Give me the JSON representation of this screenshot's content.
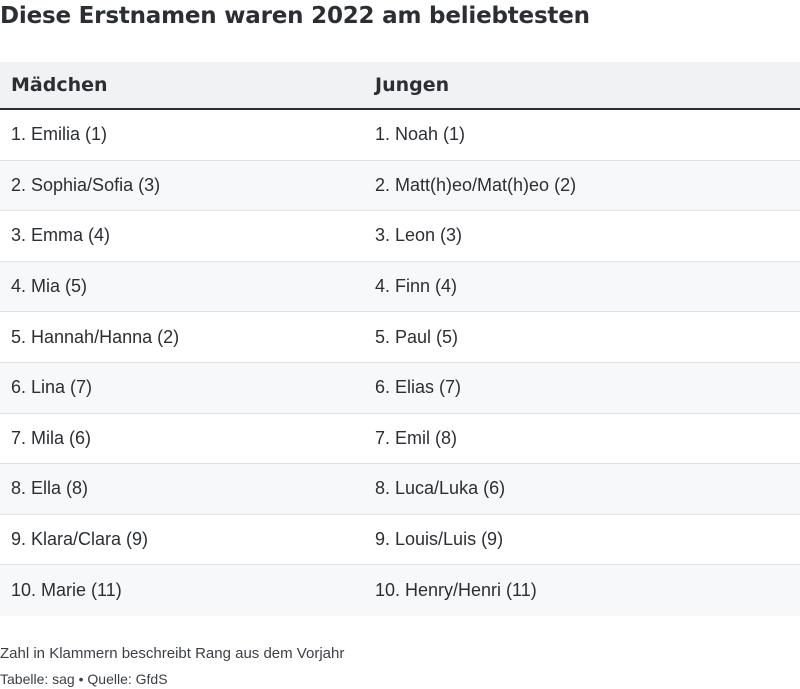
{
  "chart_data": {
    "type": "table",
    "title": "Diese Erstnamen waren 2022 am beliebtesten",
    "columns": [
      "Mädchen",
      "Jungen"
    ],
    "rows": [
      [
        "1. Emilia (1)",
        "1. Noah (1)"
      ],
      [
        "2. Sophia/Sofia (3)",
        "2. Matt(h)eo/Mat(h)eo (2)"
      ],
      [
        "3. Emma (4)",
        "3. Leon (3)"
      ],
      [
        "4. Mia (5)",
        "4. Finn (4)"
      ],
      [
        "5. Hannah/Hanna (2)",
        "5. Paul (5)"
      ],
      [
        "6. Lina (7)",
        "6. Elias (7)"
      ],
      [
        "7. Mila (6)",
        "7. Emil (8)"
      ],
      [
        "8. Ella (8)",
        "8. Luca/Luka (6)"
      ],
      [
        "9. Klara/Clara (9)",
        "9. Louis/Luis (9)"
      ],
      [
        "10. Marie (11)",
        "10. Henry/Henri (11)"
      ]
    ],
    "note": "Zahl in Klammern beschreibt Rang aus dem Vorjahr",
    "source": "Tabelle: sag • Quelle: GfdS"
  }
}
